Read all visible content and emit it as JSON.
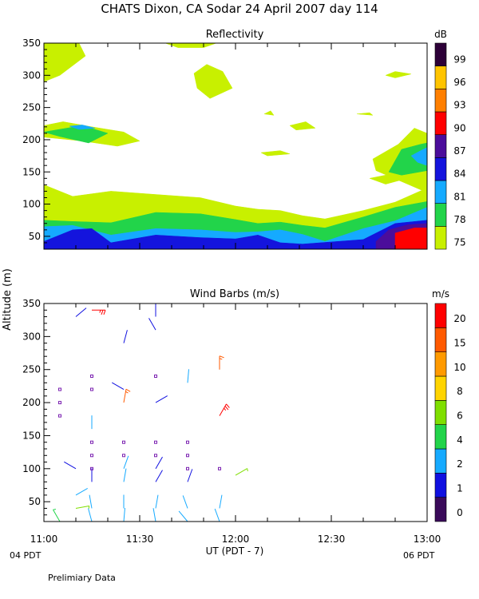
{
  "page": {
    "title": "CHATS Dixon, CA  Sodar  24 April 2007  day 114",
    "ylabel": "Altitude (m)",
    "xlabel": "UT  (PDT - 7)",
    "left_date": "04 PDT",
    "right_date": "06 PDT",
    "footer": "Prelimiary Data"
  },
  "chart_data": [
    {
      "type": "heatmap",
      "title": "Reflectivity",
      "x_ticks": [
        "11:00",
        "11:30",
        "12:00",
        "12:30",
        "13:00"
      ],
      "x_range": [
        "11:00",
        "13:00"
      ],
      "y_ticks": [
        50,
        100,
        150,
        200,
        250,
        300,
        350
      ],
      "ylim": [
        30,
        350
      ],
      "colorbar": {
        "unit": "dB",
        "levels": [
          75,
          78,
          81,
          84,
          87,
          90,
          93,
          96,
          99
        ],
        "colors": [
          "#c8f000",
          "#22d44a",
          "#15aaff",
          "#1414dd",
          "#4b0d9b",
          "#ff0000",
          "#ff7f00",
          "#ffc400",
          "#2d0038"
        ]
      },
      "regions": [
        {
          "level": 75,
          "points": [
            [
              "11:00",
              130
            ],
            [
              "11:09",
              112
            ],
            [
              "11:21",
              120
            ],
            [
              "11:35",
              115
            ],
            [
              "11:49",
              110
            ],
            [
              "12:00",
              97
            ],
            [
              "12:07",
              92
            ],
            [
              "12:14",
              90
            ],
            [
              "12:21",
              82
            ],
            [
              "12:28",
              77
            ],
            [
              "12:40",
              90
            ],
            [
              "12:50",
              103
            ],
            [
              "13:00",
              125
            ],
            [
              "13:00",
              30
            ],
            [
              "11:00",
              30
            ]
          ]
        },
        {
          "level": 78,
          "points": [
            [
              "11:00",
              75
            ],
            [
              "11:09",
              73
            ],
            [
              "11:21",
              71
            ],
            [
              "11:35",
              87
            ],
            [
              "11:49",
              85
            ],
            [
              "12:00",
              76
            ],
            [
              "12:07",
              70
            ],
            [
              "12:14",
              72
            ],
            [
              "12:21",
              67
            ],
            [
              "12:28",
              63
            ],
            [
              "12:40",
              80
            ],
            [
              "12:50",
              95
            ],
            [
              "13:00",
              104
            ],
            [
              "13:00",
              30
            ],
            [
              "11:00",
              30
            ]
          ]
        },
        {
          "level": 81,
          "points": [
            [
              "11:00",
              65
            ],
            [
              "11:09",
              67
            ],
            [
              "11:21",
              52
            ],
            [
              "11:35",
              62
            ],
            [
              "11:49",
              60
            ],
            [
              "12:00",
              56
            ],
            [
              "12:07",
              57
            ],
            [
              "12:14",
              60
            ],
            [
              "12:21",
              53
            ],
            [
              "12:28",
              42
            ],
            [
              "12:40",
              62
            ],
            [
              "12:50",
              74
            ],
            [
              "13:00",
              95
            ],
            [
              "13:00",
              30
            ],
            [
              "11:00",
              30
            ]
          ]
        },
        {
          "level": 84,
          "points": [
            [
              "11:00",
              42
            ],
            [
              "11:09",
              60
            ],
            [
              "11:15",
              62
            ],
            [
              "11:21",
              40
            ],
            [
              "11:35",
              52
            ],
            [
              "11:49",
              48
            ],
            [
              "12:00",
              46
            ],
            [
              "12:07",
              52
            ],
            [
              "12:14",
              40
            ],
            [
              "12:21",
              38
            ],
            [
              "12:40",
              45
            ],
            [
              "12:50",
              70
            ],
            [
              "13:00",
              75
            ],
            [
              "13:00",
              30
            ],
            [
              "11:00",
              30
            ]
          ]
        },
        {
          "level": 87,
          "points": [
            [
              "12:44",
              42
            ],
            [
              "12:48",
              60
            ],
            [
              "12:54",
              68
            ],
            [
              "13:00",
              70
            ],
            [
              "13:00",
              30
            ],
            [
              "12:44",
              30
            ]
          ]
        },
        {
          "level": 90,
          "points": [
            [
              "12:50",
              55
            ],
            [
              "12:56",
              63
            ],
            [
              "13:00",
              63
            ],
            [
              "13:00",
              30
            ],
            [
              "12:50",
              30
            ]
          ]
        },
        {
          "level": 75,
          "points": [
            [
              "11:00",
              350
            ],
            [
              "11:11",
              350
            ],
            [
              "11:13",
              330
            ],
            [
              "11:05",
              300
            ],
            [
              "11:00",
              290
            ]
          ]
        },
        {
          "level": 75,
          "points": [
            [
              "11:38",
              350
            ],
            [
              "11:54",
              350
            ],
            [
              "11:50",
              343
            ],
            [
              "11:42",
              343
            ]
          ]
        },
        {
          "level": 75,
          "points": [
            [
              "11:47",
              303
            ],
            [
              "11:51",
              317
            ],
            [
              "11:56",
              306
            ],
            [
              "11:59",
              280
            ],
            [
              "11:52",
              264
            ],
            [
              "11:48",
              280
            ]
          ]
        },
        {
          "level": 75,
          "points": [
            [
              "11:00",
              222
            ],
            [
              "11:06",
              228
            ],
            [
              "11:15",
              220
            ],
            [
              "11:25",
              212
            ],
            [
              "11:30",
              198
            ],
            [
              "11:23",
              190
            ],
            [
              "11:12",
              198
            ],
            [
              "11:00",
              204
            ]
          ]
        },
        {
          "level": 78,
          "points": [
            [
              "11:00",
              212
            ],
            [
              "11:12",
              222
            ],
            [
              "11:20",
              210
            ],
            [
              "11:14",
              195
            ],
            [
              "11:05",
              205
            ]
          ]
        },
        {
          "level": 81,
          "points": [
            [
              "11:08",
              221
            ],
            [
              "11:12",
              223
            ],
            [
              "11:16",
              218
            ],
            [
              "11:11",
              216
            ]
          ]
        },
        {
          "level": 75,
          "points": [
            [
              "12:09",
              240
            ],
            [
              "12:11",
              245
            ],
            [
              "12:12",
              238
            ]
          ]
        },
        {
          "level": 75,
          "points": [
            [
              "12:17",
              222
            ],
            [
              "12:22",
              228
            ],
            [
              "12:25",
              218
            ],
            [
              "12:19",
              215
            ]
          ]
        },
        {
          "level": 75,
          "points": [
            [
              "12:08",
              180
            ],
            [
              "12:14",
              183
            ],
            [
              "12:17",
              178
            ],
            [
              "12:10",
              175
            ]
          ]
        },
        {
          "level": 75,
          "points": [
            [
              "12:38",
              240
            ],
            [
              "12:42",
              242
            ],
            [
              "12:43",
              238
            ]
          ]
        },
        {
          "level": 75,
          "points": [
            [
              "12:47",
              300
            ],
            [
              "12:50",
              306
            ],
            [
              "12:55",
              302
            ],
            [
              "12:50",
              296
            ]
          ]
        },
        {
          "level": 75,
          "points": [
            [
              "12:42",
              140
            ],
            [
              "12:47",
              145
            ],
            [
              "12:53",
              139
            ],
            [
              "12:47",
              131
            ]
          ]
        },
        {
          "level": 75,
          "points": [
            [
              "12:43",
              170
            ],
            [
              "12:51",
              193
            ],
            [
              "12:56",
              218
            ],
            [
              "13:00",
              210
            ],
            [
              "13:00",
              118
            ],
            [
              "12:53",
              133
            ],
            [
              "12:44",
              152
            ]
          ]
        },
        {
          "level": 78,
          "points": [
            [
              "12:48",
              150
            ],
            [
              "12:52",
              185
            ],
            [
              "12:58",
              193
            ],
            [
              "13:00",
              195
            ],
            [
              "13:00",
              152
            ],
            [
              "12:52",
              145
            ]
          ]
        },
        {
          "level": 81,
          "points": [
            [
              "12:55",
              175
            ],
            [
              "12:58",
              183
            ],
            [
              "13:00",
              188
            ],
            [
              "13:00",
              160
            ],
            [
              "12:57",
              165
            ]
          ]
        }
      ]
    },
    {
      "type": "scatter",
      "title": "Wind Barbs (m/s)",
      "x_ticks": [
        "11:00",
        "11:30",
        "12:00",
        "12:30",
        "13:00"
      ],
      "x_range": [
        "11:00",
        "13:00"
      ],
      "y_ticks": [
        50,
        100,
        150,
        200,
        250,
        300,
        350
      ],
      "ylim": [
        20,
        350
      ],
      "colorbar": {
        "unit": "m/s",
        "levels": [
          0,
          1,
          2,
          4,
          6,
          8,
          10,
          15,
          20
        ],
        "colors": [
          "#3a0a5a",
          "#1010e0",
          "#16aaff",
          "#22d44a",
          "#7fdf00",
          "#ffd400",
          "#ff9a00",
          "#ff5a00",
          "#ff0000"
        ]
      },
      "barbs": [
        {
          "t": "11:05",
          "z": 20,
          "speed": 4,
          "dir": 330
        },
        {
          "t": "11:10",
          "z": 40,
          "speed": 6,
          "dir": 80
        },
        {
          "t": "11:10",
          "z": 60,
          "speed": 3,
          "dir": 60
        },
        {
          "t": "11:10",
          "z": 100,
          "speed": 1,
          "dir": 300
        },
        {
          "t": "11:05",
          "z": 180,
          "speed": 0,
          "dir": 0
        },
        {
          "t": "11:05",
          "z": 200,
          "speed": 0,
          "dir": 0
        },
        {
          "t": "11:05",
          "z": 220,
          "speed": 0,
          "dir": 0
        },
        {
          "t": "11:10",
          "z": 330,
          "speed": 1,
          "dir": 50
        },
        {
          "t": "11:15",
          "z": 20,
          "speed": 2,
          "dir": 345
        },
        {
          "t": "11:15",
          "z": 40,
          "speed": 2,
          "dir": 350
        },
        {
          "t": "11:15",
          "z": 80,
          "speed": 1,
          "dir": 0
        },
        {
          "t": "11:15",
          "z": 100,
          "speed": 0,
          "dir": 0
        },
        {
          "t": "11:15",
          "z": 120,
          "speed": 0,
          "dir": 0
        },
        {
          "t": "11:15",
          "z": 140,
          "speed": 0,
          "dir": 0
        },
        {
          "t": "11:15",
          "z": 160,
          "speed": 2,
          "dir": 0
        },
        {
          "t": "11:15",
          "z": 220,
          "speed": 0,
          "dir": 0
        },
        {
          "t": "11:15",
          "z": 240,
          "speed": 0,
          "dir": 0
        },
        {
          "t": "11:15",
          "z": 340,
          "speed": 20,
          "dir": 90
        },
        {
          "t": "11:25",
          "z": 20,
          "speed": 2,
          "dir": 5
        },
        {
          "t": "11:25",
          "z": 40,
          "speed": 2,
          "dir": 0
        },
        {
          "t": "11:25",
          "z": 80,
          "speed": 2,
          "dir": 10
        },
        {
          "t": "11:25",
          "z": 100,
          "speed": 2,
          "dir": 20
        },
        {
          "t": "11:25",
          "z": 120,
          "speed": 0,
          "dir": 0
        },
        {
          "t": "11:25",
          "z": 140,
          "speed": 0,
          "dir": 0
        },
        {
          "t": "11:25",
          "z": 200,
          "speed": 15,
          "dir": 10
        },
        {
          "t": "11:25",
          "z": 220,
          "speed": 1,
          "dir": 300
        },
        {
          "t": "11:25",
          "z": 290,
          "speed": 1,
          "dir": 15
        },
        {
          "t": "11:35",
          "z": 20,
          "speed": 2,
          "dir": 350
        },
        {
          "t": "11:35",
          "z": 40,
          "speed": 2,
          "dir": 10
        },
        {
          "t": "11:35",
          "z": 80,
          "speed": 1,
          "dir": 30
        },
        {
          "t": "11:35",
          "z": 100,
          "speed": 1,
          "dir": 30
        },
        {
          "t": "11:35",
          "z": 120,
          "speed": 0,
          "dir": 0
        },
        {
          "t": "11:35",
          "z": 140,
          "speed": 0,
          "dir": 0
        },
        {
          "t": "11:35",
          "z": 200,
          "speed": 1,
          "dir": 60
        },
        {
          "t": "11:35",
          "z": 240,
          "speed": 0,
          "dir": 0
        },
        {
          "t": "11:35",
          "z": 310,
          "speed": 1,
          "dir": 330
        },
        {
          "t": "11:35",
          "z": 330,
          "speed": 1,
          "dir": 0
        },
        {
          "t": "11:45",
          "z": 20,
          "speed": 2,
          "dir": 320
        },
        {
          "t": "11:45",
          "z": 40,
          "speed": 2,
          "dir": 340
        },
        {
          "t": "11:45",
          "z": 80,
          "speed": 1,
          "dir": 20
        },
        {
          "t": "11:45",
          "z": 100,
          "speed": 0,
          "dir": 0
        },
        {
          "t": "11:45",
          "z": 120,
          "speed": 0,
          "dir": 0
        },
        {
          "t": "11:45",
          "z": 140,
          "speed": 0,
          "dir": 0
        },
        {
          "t": "11:45",
          "z": 230,
          "speed": 2,
          "dir": 5
        },
        {
          "t": "11:55",
          "z": 20,
          "speed": 2,
          "dir": 340
        },
        {
          "t": "11:55",
          "z": 40,
          "speed": 2,
          "dir": 10
        },
        {
          "t": "11:55",
          "z": 100,
          "speed": 0,
          "dir": 0
        },
        {
          "t": "11:55",
          "z": 180,
          "speed": 20,
          "dir": 30
        },
        {
          "t": "11:55",
          "z": 250,
          "speed": 15,
          "dir": 0
        },
        {
          "t": "12:00",
          "z": 90,
          "speed": 6,
          "dir": 60
        }
      ]
    }
  ]
}
